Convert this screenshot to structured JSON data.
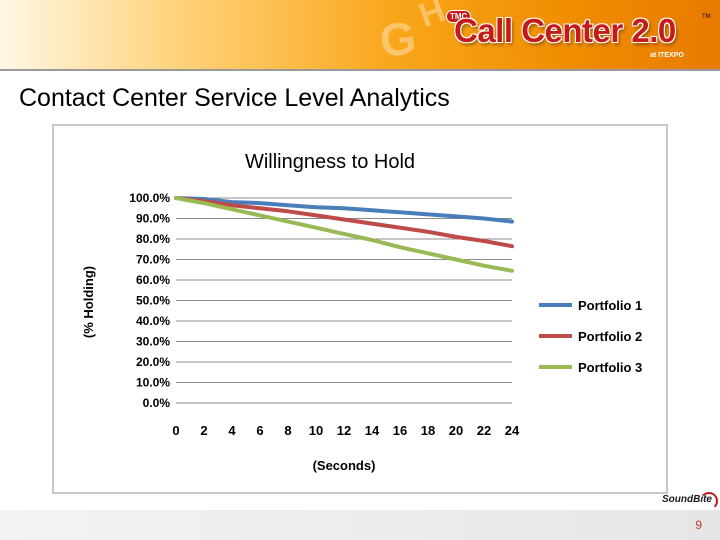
{
  "banner": {
    "logo_badge": "TMC",
    "logo_title": "Call Center 2.0",
    "logo_tm": "TM",
    "logo_subtitle": "at ITEXPO"
  },
  "slide": {
    "title": "Contact Center Service Level Analytics",
    "page_number": "9",
    "footer_logo": "SoundBite"
  },
  "colors": {
    "portfolio1": "#4a7ebb",
    "portfolio2": "#be4b48",
    "portfolio3": "#98b954",
    "banner_accent": "#f08c00",
    "logo_red": "#c61a1a"
  },
  "chart_data": {
    "type": "line",
    "title": "Willingness  to  Hold",
    "xlabel": "(Seconds)",
    "ylabel": "(% Holding)",
    "x": [
      0,
      2,
      4,
      6,
      8,
      10,
      12,
      14,
      16,
      18,
      20,
      22,
      24
    ],
    "xticks": [
      "0",
      "2",
      "4",
      "6",
      "8",
      "10",
      "12",
      "14",
      "16",
      "18",
      "20",
      "22",
      "24"
    ],
    "yticks": [
      "0.0%",
      "10.0%",
      "20.0%",
      "30.0%",
      "40.0%",
      "50.0%",
      "60.0%",
      "70.0%",
      "80.0%",
      "90.0%",
      "100.0%"
    ],
    "ylim": [
      0,
      100
    ],
    "grid": true,
    "legend_position": "right",
    "series": [
      {
        "name": "Portfolio 1",
        "values": [
          100,
          99.5,
          98,
          97.5,
          96.5,
          95.5,
          95,
          94,
          93,
          92,
          91,
          90,
          88.5
        ]
      },
      {
        "name": "Portfolio 2",
        "values": [
          100,
          98.5,
          96.5,
          95,
          93.5,
          91.5,
          89.5,
          87.5,
          85.5,
          83.5,
          81,
          79,
          76.5
        ]
      },
      {
        "name": "Portfolio 3",
        "values": [
          100,
          97.5,
          94.5,
          91.5,
          88.5,
          85.5,
          82.5,
          79.5,
          76,
          73,
          70,
          67,
          64.5
        ]
      }
    ]
  }
}
